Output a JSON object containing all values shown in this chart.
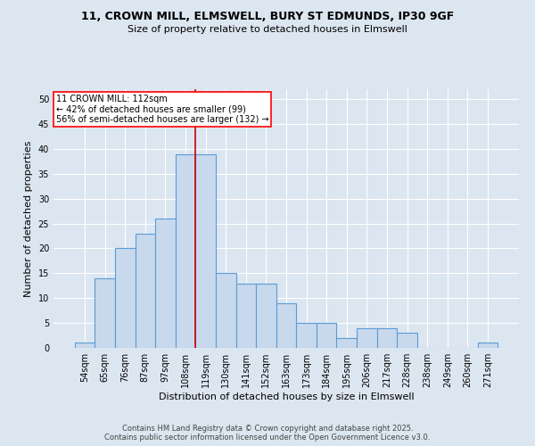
{
  "title_line1": "11, CROWN MILL, ELMSWELL, BURY ST EDMUNDS, IP30 9GF",
  "title_line2": "Size of property relative to detached houses in Elmswell",
  "xlabel": "Distribution of detached houses by size in Elmswell",
  "ylabel": "Number of detached properties",
  "categories": [
    "54sqm",
    "65sqm",
    "76sqm",
    "87sqm",
    "97sqm",
    "108sqm",
    "119sqm",
    "130sqm",
    "141sqm",
    "152sqm",
    "163sqm",
    "173sqm",
    "184sqm",
    "195sqm",
    "206sqm",
    "217sqm",
    "228sqm",
    "238sqm",
    "249sqm",
    "260sqm",
    "271sqm"
  ],
  "values": [
    1,
    14,
    20,
    23,
    26,
    39,
    39,
    15,
    13,
    13,
    9,
    5,
    5,
    2,
    4,
    4,
    3,
    0,
    0,
    0,
    1
  ],
  "bar_color": "#c9d9ed",
  "bar_edge_color": "#5b9bd5",
  "background_color": "#dce6f1",
  "grid_color": "#ffffff",
  "vline_x": 5.5,
  "vline_color": "#cc0000",
  "ylim": [
    0,
    52
  ],
  "yticks": [
    0,
    5,
    10,
    15,
    20,
    25,
    30,
    35,
    40,
    45,
    50
  ],
  "annotation_title": "11 CROWN MILL: 112sqm",
  "annotation_line1": "← 42% of detached houses are smaller (99)",
  "annotation_line2": "56% of semi-detached houses are larger (132) →",
  "footer_line1": "Contains HM Land Registry data © Crown copyright and database right 2025.",
  "footer_line2": "Contains public sector information licensed under the Open Government Licence v3.0.",
  "title_fontsize": 9,
  "subtitle_fontsize": 8,
  "ylabel_fontsize": 8,
  "xlabel_fontsize": 8,
  "tick_fontsize": 7,
  "annot_fontsize": 7,
  "footer_fontsize": 6
}
